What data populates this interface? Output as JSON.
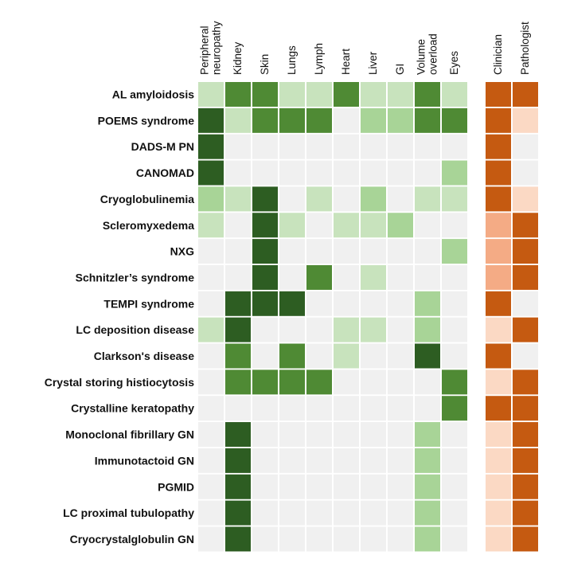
{
  "chart_data": {
    "type": "heatmap",
    "title": "",
    "xlabel": "",
    "ylabel": "",
    "value_scale": "intensity level 0 (none) to 4 (strongest)",
    "organ_columns": [
      {
        "key": "peripheral_neuropathy",
        "lines": [
          "Peripheral",
          "neuropathy"
        ]
      },
      {
        "key": "kidney",
        "lines": [
          "Kidney"
        ]
      },
      {
        "key": "skin",
        "lines": [
          "Skin"
        ]
      },
      {
        "key": "lungs",
        "lines": [
          "Lungs"
        ]
      },
      {
        "key": "lymph",
        "lines": [
          "Lymph"
        ]
      },
      {
        "key": "heart",
        "lines": [
          "Heart"
        ]
      },
      {
        "key": "liver",
        "lines": [
          "Liver"
        ]
      },
      {
        "key": "gi",
        "lines": [
          "GI"
        ]
      },
      {
        "key": "volume_overload",
        "lines": [
          "Volume",
          "overload"
        ]
      },
      {
        "key": "eyes",
        "lines": [
          "Eyes"
        ]
      }
    ],
    "role_columns": [
      {
        "key": "clinician",
        "lines": [
          "Clinician"
        ]
      },
      {
        "key": "pathologist",
        "lines": [
          "Pathologist"
        ]
      }
    ],
    "rows": [
      {
        "label": "AL amyloidosis",
        "organs": [
          1,
          3,
          3,
          1,
          1,
          3,
          1,
          1,
          3,
          1
        ],
        "roles": [
          4,
          4
        ]
      },
      {
        "label": "POEMS syndrome",
        "organs": [
          4,
          1,
          3,
          3,
          3,
          0,
          2,
          2,
          3,
          3
        ],
        "roles": [
          4,
          1
        ]
      },
      {
        "label": "DADS-M PN",
        "organs": [
          4,
          0,
          0,
          0,
          0,
          0,
          0,
          0,
          0,
          0
        ],
        "roles": [
          4,
          0
        ]
      },
      {
        "label": "CANOMAD",
        "organs": [
          4,
          0,
          0,
          0,
          0,
          0,
          0,
          0,
          0,
          2
        ],
        "roles": [
          4,
          0
        ]
      },
      {
        "label": "Cryoglobulinemia",
        "organs": [
          2,
          1,
          4,
          0,
          1,
          0,
          2,
          0,
          1,
          1
        ],
        "roles": [
          4,
          1
        ]
      },
      {
        "label": "Scleromyxedema",
        "organs": [
          1,
          0,
          4,
          1,
          0,
          1,
          1,
          2,
          0,
          0
        ],
        "roles": [
          2,
          4
        ]
      },
      {
        "label": "NXG",
        "organs": [
          0,
          0,
          4,
          0,
          0,
          0,
          0,
          0,
          0,
          2
        ],
        "roles": [
          2,
          4
        ]
      },
      {
        "label": "Schnitzler’s syndrome",
        "organs": [
          0,
          0,
          4,
          0,
          3,
          0,
          1,
          0,
          0,
          0
        ],
        "roles": [
          2,
          4
        ]
      },
      {
        "label": "TEMPI syndrome",
        "organs": [
          0,
          4,
          4,
          4,
          0,
          0,
          0,
          0,
          2,
          0
        ],
        "roles": [
          4,
          0
        ]
      },
      {
        "label": "LC deposition disease",
        "organs": [
          1,
          4,
          0,
          0,
          0,
          1,
          1,
          0,
          2,
          0
        ],
        "roles": [
          1,
          4
        ]
      },
      {
        "label": "Clarkson's disease",
        "organs": [
          0,
          3,
          0,
          3,
          0,
          1,
          0,
          0,
          4,
          0
        ],
        "roles": [
          4,
          0
        ]
      },
      {
        "label": "Crystal storing histiocytosis",
        "organs": [
          0,
          3,
          3,
          3,
          3,
          0,
          0,
          0,
          0,
          3
        ],
        "roles": [
          1,
          4
        ]
      },
      {
        "label": "Crystalline keratopathy",
        "organs": [
          0,
          0,
          0,
          0,
          0,
          0,
          0,
          0,
          0,
          3
        ],
        "roles": [
          4,
          4
        ]
      },
      {
        "label": "Monoclonal fibrillary GN",
        "organs": [
          0,
          4,
          0,
          0,
          0,
          0,
          0,
          0,
          2,
          0
        ],
        "roles": [
          1,
          4
        ]
      },
      {
        "label": "Immunotactoid GN",
        "organs": [
          0,
          4,
          0,
          0,
          0,
          0,
          0,
          0,
          2,
          0
        ],
        "roles": [
          1,
          4
        ]
      },
      {
        "label": "PGMID",
        "organs": [
          0,
          4,
          0,
          0,
          0,
          0,
          0,
          0,
          2,
          0
        ],
        "roles": [
          1,
          4
        ]
      },
      {
        "label": "LC proximal tubulopathy",
        "organs": [
          0,
          4,
          0,
          0,
          0,
          0,
          0,
          0,
          2,
          0
        ],
        "roles": [
          1,
          4
        ]
      },
      {
        "label": "Cryocrystalglobulin GN",
        "organs": [
          0,
          4,
          0,
          0,
          0,
          0,
          0,
          0,
          2,
          0
        ],
        "roles": [
          1,
          4
        ]
      }
    ],
    "organ_colors": [
      "#f0f0f0",
      "#c8e3bd",
      "#a8d497",
      "#4f8a34",
      "#2d5d22"
    ],
    "role_colors": [
      "#f0f0f0",
      "#fbd9c4",
      "#f4ab85",
      "#e28a52",
      "#c55a11"
    ],
    "grid": false,
    "legend": "none"
  }
}
